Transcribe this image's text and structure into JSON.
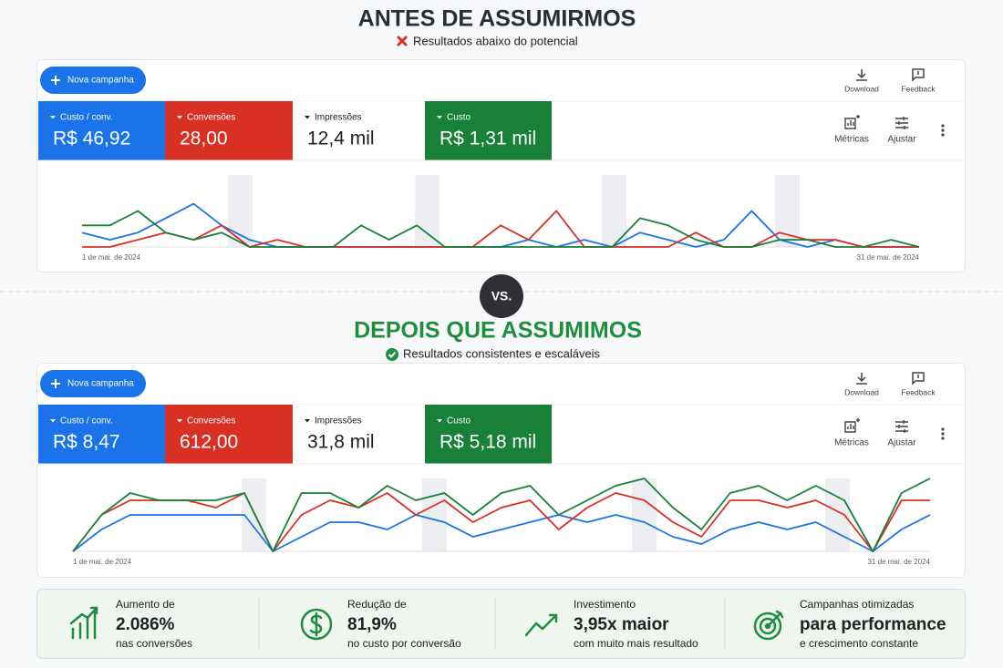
{
  "before": {
    "title": "ANTES DE ASSUMIRMOS",
    "subtitle": "Resultados abaixo do potencial",
    "panel": {
      "button": "Nova campanha",
      "actions": [
        "Download",
        "Feedback"
      ],
      "metrics": [
        {
          "name": "Custo / conv.",
          "value": "R$ 46,92"
        },
        {
          "name": "Conversões",
          "value": "28,00"
        },
        {
          "name": "Impressões",
          "value": "12,4 mil"
        },
        {
          "name": "Custo",
          "value": "R$ 1,31 mil"
        }
      ],
      "tools": [
        "Métricas",
        "Ajustar"
      ],
      "chart": {
        "type": "line",
        "x_start": "1 de mai. de 2024",
        "x_end": "31 de mai. de 2024",
        "ylim": [
          0,
          10
        ],
        "series": [
          {
            "color": "#1a73e8",
            "values": [
              2,
              1,
              2,
              4,
              6,
              3,
              1,
              0,
              0,
              0,
              0,
              0,
              0,
              0,
              0,
              0,
              1,
              0,
              1,
              0,
              2,
              1,
              0,
              1,
              5,
              1,
              0,
              1,
              0,
              0,
              0
            ]
          },
          {
            "color": "#d93025",
            "values": [
              0,
              0,
              1,
              2,
              1,
              3,
              0,
              1,
              0,
              0,
              0,
              0,
              0,
              0,
              0,
              3,
              1,
              5,
              0,
              0,
              0,
              0,
              2,
              0,
              0,
              2,
              1,
              1,
              0,
              0,
              0
            ]
          },
          {
            "color": "#188038",
            "values": [
              3,
              3,
              5,
              2,
              1,
              2,
              0,
              0,
              0,
              0,
              3,
              1,
              3,
              0,
              0,
              0,
              0,
              0,
              0,
              0,
              4,
              3,
              1,
              0,
              0,
              1,
              1,
              0,
              0,
              1,
              0
            ]
          }
        ]
      }
    }
  },
  "vs": "VS.",
  "after": {
    "title": "DEPOIS QUE ASSUMIMOS",
    "subtitle": "Resultados consistentes e escaláveis",
    "panel": {
      "button": "Nova campanha",
      "actions": [
        "Download",
        "Feedback"
      ],
      "metrics": [
        {
          "name": "Custo / conv.",
          "value": "R$ 8,47"
        },
        {
          "name": "Conversões",
          "value": "612,00"
        },
        {
          "name": "Impressões",
          "value": "31,8 mil"
        },
        {
          "name": "Custo",
          "value": "R$ 5,18 mil"
        }
      ],
      "tools": [
        "Métricas",
        "Ajustar"
      ],
      "chart": {
        "type": "line",
        "x_start": "1 de mai. de 2024",
        "x_end": "31 de mai. de 2024",
        "ylim": [
          0,
          10
        ],
        "series": [
          {
            "color": "#1a73e8",
            "values": [
              0,
              3,
              5,
              5,
              5,
              5,
              5,
              0,
              2,
              4,
              4,
              3,
              5,
              4,
              2,
              3,
              4,
              5,
              4,
              5,
              4,
              2,
              1,
              3,
              4,
              3,
              4,
              2,
              0,
              3,
              5
            ]
          },
          {
            "color": "#d93025",
            "values": [
              0,
              5,
              7,
              7,
              7,
              6,
              8,
              0,
              5,
              7,
              6,
              8,
              5,
              7,
              4,
              6,
              7,
              3,
              6,
              8,
              7,
              4,
              2,
              7,
              7,
              6,
              7,
              5,
              0,
              7,
              7
            ]
          },
          {
            "color": "#188038",
            "values": [
              0,
              5,
              8,
              7,
              7,
              7,
              8,
              0,
              8,
              8,
              6,
              9,
              7,
              8,
              5,
              8,
              9,
              5,
              7,
              9,
              10,
              6,
              3,
              8,
              9,
              7,
              9,
              7,
              0,
              8,
              10
            ]
          }
        ]
      }
    }
  },
  "stats": [
    {
      "label": "Aumento de",
      "value": "2.086%",
      "note": "nas conversões"
    },
    {
      "label": "Redução de",
      "value": "81,9%",
      "note": "no custo por conversão"
    },
    {
      "label": "Investimento",
      "value": "3,95x maior",
      "note": "com muito mais resultado"
    },
    {
      "label": "Campanhas otimizadas",
      "value": "para performance",
      "note": "e crescimento constante"
    }
  ]
}
